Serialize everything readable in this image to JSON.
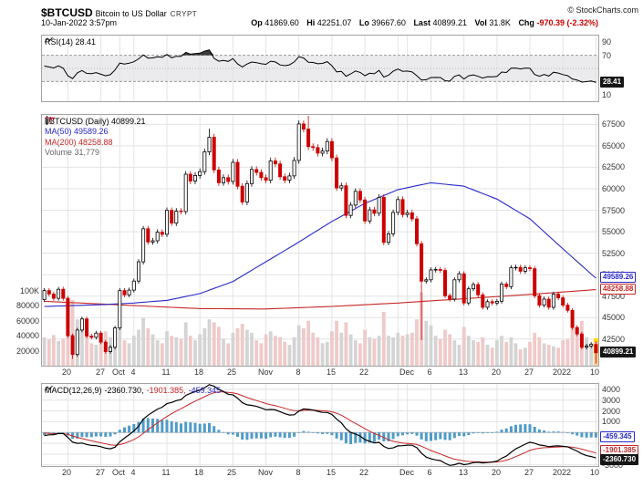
{
  "header": {
    "symbol": "$BTCUSD",
    "description": "Bitcoin to US Dollar",
    "exchange": "CRYPT",
    "copyright": "© StockCharts.com",
    "datetime": "10-Jan-2022 3:57pm",
    "quote": {
      "op_label": "Op",
      "op": "41869.60",
      "hi_label": "Hi",
      "hi": "42251.07",
      "lo_label": "Lo",
      "lo": "39667.60",
      "last_label": "Last",
      "last": "40899.21",
      "vol_label": "Vol",
      "vol": "31.8K",
      "chg_label": "Chg",
      "chg": "-970.39 (-2.32%)"
    }
  },
  "rsi_panel": {
    "legend": "RSI(14) 28.41",
    "tag": "28.41"
  },
  "price_panel": {
    "legend_symbol": "$BTCUSD (Daily) 40899.21",
    "legend_ma50": "MA(50) 49589.26",
    "legend_ma200": "MA(200) 48258.88",
    "legend_volume": "Volume 31,779",
    "tag_ma50": "49589.26",
    "tag_ma200": "48258.88",
    "tag_last": "40899.21"
  },
  "macd_panel": {
    "name": "MACD(12,26,9)",
    "v_macd": "-2360.730,",
    "v_signal": "-1901.385,",
    "v_hist": "-459.345",
    "tag_hist": "-459.345",
    "tag_signal": "-1901.385",
    "tag_macd": "-2360.730"
  },
  "chart_data": {
    "type": "candlestick",
    "title": "$BTCUSD Bitcoin to US Dollar (Daily) with RSI(14), MA(50), MA(200), Volume and MACD(12,26,9)",
    "x_ticks": [
      [
        5,
        "20"
      ],
      [
        12,
        "27"
      ],
      [
        16,
        "Oct"
      ],
      [
        19,
        "4"
      ],
      [
        26,
        "11"
      ],
      [
        33,
        "18"
      ],
      [
        40,
        "25"
      ],
      [
        47,
        "Nov"
      ],
      [
        54,
        "8"
      ],
      [
        61,
        "15"
      ],
      [
        68,
        "22"
      ],
      [
        75,
        ""
      ],
      [
        77,
        "Dec"
      ],
      [
        82,
        "6"
      ],
      [
        89,
        "13"
      ],
      [
        96,
        "20"
      ],
      [
        103,
        "27"
      ],
      [
        110,
        "2022"
      ],
      [
        117,
        "10"
      ]
    ],
    "price_axis": {
      "min": 39400,
      "max": 68600,
      "ticks": [
        42500,
        45000,
        47500,
        50000,
        52500,
        55000,
        57500,
        60000,
        62500,
        65000,
        67500
      ]
    },
    "volume_axis": {
      "ticks": [
        20000,
        40000,
        60000,
        80000,
        100000
      ],
      "labels": [
        "20000",
        "40000",
        "60000",
        "80000",
        "100K"
      ],
      "scale_max": 100000
    },
    "rsi_axis": {
      "ticks": [
        90,
        70,
        30,
        10
      ],
      "band": [
        30,
        70
      ],
      "last": 28.41
    },
    "macd_axis": {
      "min": -3100,
      "max": 4500,
      "labeled_ticks": [
        4000,
        3000,
        2000,
        1000,
        -3000
      ],
      "grid_step": 1000,
      "last_macd": -2360.73,
      "last_signal": -1901.385,
      "last_hist": -459.345
    },
    "last_values": {
      "close": 40899.21,
      "ma50": 49589.26,
      "ma200": 48258.88,
      "rsi": 28.41,
      "volume": 31779
    },
    "pre_closes": [
      45900,
      44700,
      44700,
      46750,
      49300,
      48860,
      48900,
      49500,
      47700,
      48970,
      46850,
      49050,
      48900,
      48800,
      46990,
      47100,
      48830,
      49990,
      49920,
      49940,
      51750,
      52660,
      46850,
      46050,
      46390,
      44850,
      45160,
      46060,
      44960,
      47100
    ],
    "closes": [
      48150,
      47750,
      47250,
      48300,
      47250,
      42900,
      40700,
      43550,
      44850,
      42850,
      42700,
      43200,
      42150,
      41050,
      41550,
      43800,
      48150,
      47650,
      48200,
      49250,
      51500,
      55350,
      53800,
      53950,
      54950,
      54700,
      57480,
      56000,
      57400,
      57350,
      61700,
      60900,
      61550,
      62000,
      64300,
      66000,
      62200,
      60700,
      61300,
      60850,
      63080,
      60300,
      58450,
      60600,
      62250,
      61900,
      61300,
      61000,
      63250,
      62900,
      61400,
      61000,
      61500,
      63300,
      67550,
      66950,
      64900,
      64800,
      64150,
      64400,
      65500,
      63600,
      60100,
      60350,
      56900,
      58100,
      59700,
      58700,
      56250,
      57550,
      57150,
      59000,
      53750,
      54750,
      57250,
      58750,
      57000,
      57200,
      56500,
      53600,
      49250,
      49400,
      50550,
      50600,
      50500,
      47550,
      47150,
      49400,
      50100,
      46700,
      48350,
      48850,
      47650,
      46200,
      46850,
      46700,
      46900,
      48900,
      48600,
      50800,
      50850,
      50400,
      50800,
      50700,
      47550,
      46450,
      47150,
      46200,
      47750,
      47300,
      46450,
      45850,
      43850,
      43100,
      41550,
      41700,
      41900,
      40899.21
    ],
    "volumes": [
      38000,
      35000,
      41000,
      33000,
      36000,
      82000,
      88000,
      62000,
      48000,
      45000,
      30000,
      28000,
      42000,
      46000,
      38000,
      44000,
      52000,
      34000,
      30000,
      40000,
      48000,
      64000,
      50000,
      42000,
      34000,
      30000,
      46000,
      40000,
      38000,
      36000,
      58000,
      40000,
      34000,
      42000,
      50000,
      62000,
      58000,
      52000,
      36000,
      30000,
      44000,
      50000,
      56000,
      48000,
      44000,
      34000,
      30000,
      42000,
      46000,
      40000,
      38000,
      32000,
      28000,
      38000,
      54000,
      50000,
      60000,
      44000,
      38000,
      30000,
      32000,
      46000,
      60000,
      44000,
      58000,
      42000,
      34000,
      30000,
      48000,
      38000,
      36000,
      40000,
      72000,
      40000,
      38000,
      44000,
      40000,
      42000,
      44000,
      62000,
      98000,
      60000,
      54000,
      40000,
      36000,
      48000,
      42000,
      34000,
      28000,
      52000,
      40000,
      34000,
      32000,
      38000,
      28000,
      24000,
      34000,
      40000,
      32000,
      38000,
      30000,
      22000,
      24000,
      32000,
      44000,
      38000,
      30000,
      28000,
      26000,
      24000,
      34000,
      36000,
      52000,
      48000,
      60000,
      38000,
      30000,
      31779
    ],
    "ohlc_overrides": {
      "6": {
        "low": 40200
      },
      "35": {
        "high": 67000
      },
      "56": {
        "high": 68500
      },
      "80": {
        "low": 42400
      },
      "117": {
        "open": 41869.6,
        "high": 42251.07,
        "low": 39667.6
      }
    },
    "ma50_anchors": [
      [
        0,
        46300
      ],
      [
        12,
        46500
      ],
      [
        19,
        46700
      ],
      [
        26,
        47000
      ],
      [
        33,
        47800
      ],
      [
        40,
        49200
      ],
      [
        47,
        51500
      ],
      [
        54,
        53800
      ],
      [
        61,
        56200
      ],
      [
        68,
        58300
      ],
      [
        75,
        59900
      ],
      [
        82,
        60700
      ],
      [
        89,
        60300
      ],
      [
        96,
        58800
      ],
      [
        103,
        56500
      ],
      [
        110,
        53000
      ],
      [
        117,
        49589.26
      ]
    ],
    "ma200_anchors": [
      [
        0,
        46900
      ],
      [
        19,
        46400
      ],
      [
        33,
        46050
      ],
      [
        47,
        46000
      ],
      [
        61,
        46300
      ],
      [
        75,
        46700
      ],
      [
        89,
        47200
      ],
      [
        103,
        47700
      ],
      [
        117,
        48258.88
      ]
    ],
    "colors": {
      "up": "#000000",
      "down": "#cc0000",
      "ma50": "#2929c8",
      "ma200": "#c62828",
      "macd_hist": "#4f9bc8",
      "macd_line": "#000000",
      "macd_signal": "#c62828",
      "vol_up": "#d4d4d4",
      "vol_down": "#f0c9c9",
      "highlight": "#ffd800",
      "grid": "#e3e3e3",
      "rsi_band": "#ebebee",
      "rsi_overbought_fill": "#3a3a3a"
    }
  }
}
